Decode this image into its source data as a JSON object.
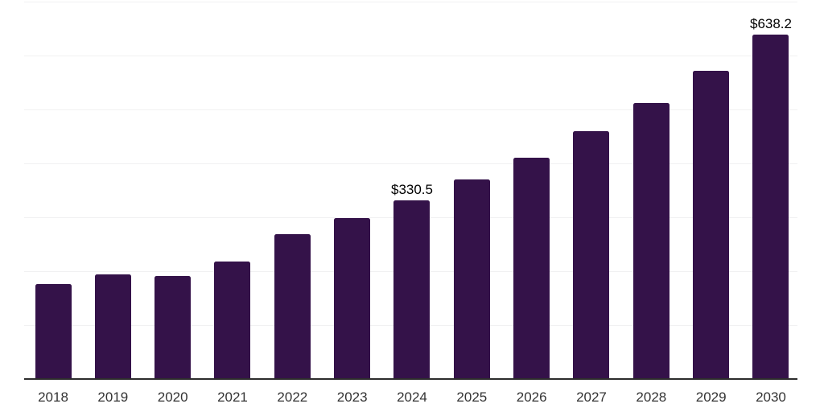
{
  "chart_data": {
    "type": "bar",
    "categories": [
      "2018",
      "2019",
      "2020",
      "2021",
      "2022",
      "2023",
      "2024",
      "2025",
      "2026",
      "2027",
      "2028",
      "2029",
      "2030"
    ],
    "values": [
      175,
      194,
      190,
      217,
      268,
      298,
      330.5,
      370,
      410,
      459,
      512,
      572,
      638.2
    ],
    "data_labels": {
      "2024": "$330.5",
      "2030": "$638.2"
    },
    "ylim": [
      0,
      700
    ],
    "gridline_step": 100,
    "grid": "horizontal-only",
    "y_axis_labels": "none",
    "legend": "none",
    "bar_color": "#341249"
  },
  "colors": {
    "bar": "#341249",
    "gridline": "#f1f1f2",
    "axis_line": "#2d2d2d",
    "data_label": "#000000",
    "tick_label": "#333333",
    "background": "#ffffff"
  }
}
